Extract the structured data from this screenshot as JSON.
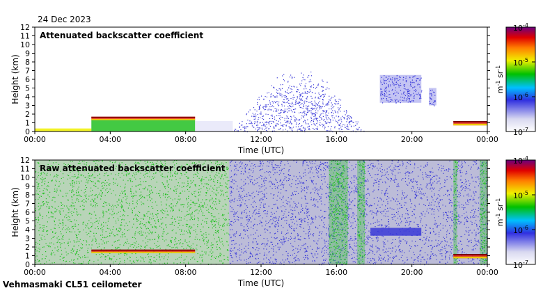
{
  "date_label": "24 Dec 2023",
  "instrument_label": "Vehmasmaki CL51 ceilometer",
  "colors": {
    "background_noise": "#d8d8d8",
    "low": "#d6d6f5",
    "blue": "#3a3ad8",
    "green": "#22c022",
    "yellow": "#f0f000",
    "red": "#e01010",
    "dark_red": "#7a0000"
  },
  "chart_data": [
    {
      "type": "heatmap",
      "title": "Attenuated backscatter coefficient",
      "xlabel": "Time (UTC)",
      "ylabel": "Height (km)",
      "x_ticks": [
        "00:00",
        "04:00",
        "08:00",
        "12:00",
        "16:00",
        "20:00",
        "00:00"
      ],
      "y_ticks": [
        "0",
        "1",
        "2",
        "3",
        "4",
        "5",
        "6",
        "7",
        "8",
        "9",
        "10",
        "11",
        "12"
      ],
      "xlim_hours": [
        0,
        24
      ],
      "ylim": [
        0,
        12
      ],
      "colorbar": {
        "scale": "log",
        "tick_labels": [
          "10",
          "10",
          "10",
          "10"
        ],
        "tick_exponents": [
          "-4",
          "-5",
          "-6",
          "-7"
        ],
        "unit_label": "m",
        "unit_exp1": "-1",
        "unit_sr": " sr",
        "unit_exp2": "-1"
      },
      "features": [
        {
          "kind": "surface_layer",
          "start_h": 0.0,
          "end_h": 3.0,
          "bottom_km": 0.0,
          "top_km": 0.35,
          "level": "yellow"
        },
        {
          "kind": "low_cloud",
          "start_h": 3.0,
          "end_h": 8.5,
          "bottom_km": 1.3,
          "top_km": 1.7,
          "level": "red"
        },
        {
          "kind": "boundary_layer",
          "start_h": 3.0,
          "end_h": 8.5,
          "bottom_km": 0.0,
          "top_km": 1.3,
          "level": "green"
        },
        {
          "kind": "noise_fade",
          "start_h": 8.5,
          "end_h": 10.5,
          "bottom_km": 0.0,
          "top_km": 1.2,
          "level": "low"
        },
        {
          "kind": "precip_column",
          "start_h": 10.5,
          "end_h": 17.5,
          "bottom_km": 0.0,
          "top_km": 7.5,
          "level": "blue"
        },
        {
          "kind": "cloud_patch",
          "start_h": 18.3,
          "end_h": 20.5,
          "bottom_km": 3.3,
          "top_km": 6.5,
          "level": "blue"
        },
        {
          "kind": "cloud_patch",
          "start_h": 20.9,
          "end_h": 21.3,
          "bottom_km": 3.0,
          "top_km": 5.0,
          "level": "blue"
        },
        {
          "kind": "low_cloud",
          "start_h": 22.2,
          "end_h": 24.0,
          "bottom_km": 0.7,
          "top_km": 1.2,
          "level": "red"
        }
      ]
    },
    {
      "type": "heatmap",
      "title": "Raw attenuated backscatter coefficient",
      "xlabel": "Time (UTC)",
      "ylabel": "Height (km)",
      "x_ticks": [
        "00:00",
        "04:00",
        "08:00",
        "12:00",
        "16:00",
        "20:00",
        "00:00"
      ],
      "y_ticks": [
        "0",
        "1",
        "2",
        "3",
        "4",
        "5",
        "6",
        "7",
        "8",
        "9",
        "10",
        "11",
        "12"
      ],
      "xlim_hours": [
        0,
        24
      ],
      "ylim": [
        0,
        12
      ],
      "colorbar": {
        "scale": "log",
        "tick_labels": [
          "10",
          "10",
          "10",
          "10"
        ],
        "tick_exponents": [
          "-4",
          "-5",
          "-6",
          "-7"
        ],
        "unit_label": "m",
        "unit_exp1": "-1",
        "unit_sr": " sr",
        "unit_exp2": "-1"
      },
      "features": [
        {
          "kind": "noise_field",
          "start_h": 0.0,
          "end_h": 10.3,
          "bottom_km": 0.0,
          "top_km": 12.0,
          "level": "green"
        },
        {
          "kind": "low_cloud",
          "start_h": 3.0,
          "end_h": 8.5,
          "bottom_km": 1.3,
          "top_km": 1.7,
          "level": "red"
        },
        {
          "kind": "noise_field",
          "start_h": 10.3,
          "end_h": 24.0,
          "bottom_km": 0.0,
          "top_km": 12.0,
          "level": "blue"
        },
        {
          "kind": "noise_band",
          "start_h": 15.6,
          "end_h": 16.6,
          "bottom_km": 0.0,
          "top_km": 12.0,
          "level": "green"
        },
        {
          "kind": "noise_band",
          "start_h": 17.1,
          "end_h": 17.5,
          "bottom_km": 0.0,
          "top_km": 12.0,
          "level": "green"
        },
        {
          "kind": "cloud_layer",
          "start_h": 17.8,
          "end_h": 20.5,
          "bottom_km": 3.3,
          "top_km": 4.2,
          "level": "blue"
        },
        {
          "kind": "noise_band",
          "start_h": 22.2,
          "end_h": 22.4,
          "bottom_km": 0.0,
          "top_km": 12.0,
          "level": "green"
        },
        {
          "kind": "noise_band",
          "start_h": 23.6,
          "end_h": 24.0,
          "bottom_km": 0.0,
          "top_km": 12.0,
          "level": "green"
        },
        {
          "kind": "low_cloud",
          "start_h": 22.2,
          "end_h": 24.0,
          "bottom_km": 0.7,
          "top_km": 1.2,
          "level": "red"
        }
      ]
    }
  ]
}
